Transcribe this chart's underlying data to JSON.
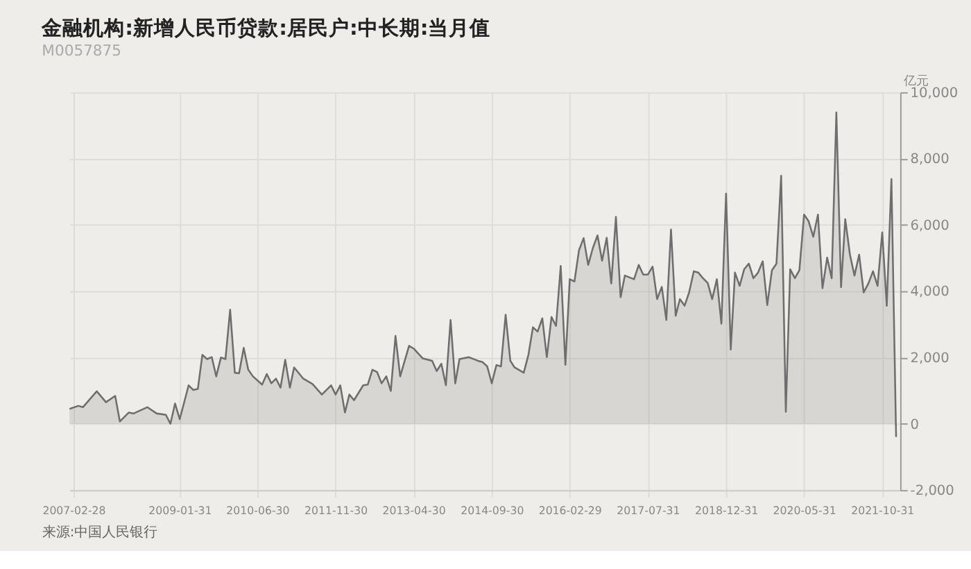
{
  "chart_data": {
    "type": "area",
    "title": "金融机构:新增人民币贷款:居民户:中长期:当月值",
    "subtitle": "M0057875",
    "ylabel": "亿元",
    "annotations": [
      "来源:中国人民银行"
    ],
    "x": [
      "2007-02",
      "2007-04",
      "2007-05",
      "2007-08",
      "2007-10",
      "2007-12",
      "2008-01",
      "2008-03",
      "2008-04",
      "2008-07",
      "2008-09",
      "2008-11",
      "2008-12",
      "2009-01",
      "2009-02",
      "2009-04",
      "2009-05",
      "2009-06",
      "2009-07",
      "2009-08",
      "2009-09",
      "2009-10",
      "2009-11",
      "2009-12",
      "2010-01",
      "2010-02",
      "2010-03",
      "2010-04",
      "2010-05",
      "2010-06",
      "2010-08",
      "2010-09",
      "2010-10",
      "2010-11",
      "2010-12",
      "2011-01",
      "2011-02",
      "2011-03",
      "2011-05",
      "2011-07",
      "2011-09",
      "2011-11",
      "2011-12",
      "2012-01",
      "2012-02",
      "2012-03",
      "2012-04",
      "2012-06",
      "2012-07",
      "2012-08",
      "2012-09",
      "2012-10",
      "2012-11",
      "2012-12",
      "2013-01",
      "2013-02",
      "2013-04",
      "2013-05",
      "2013-07",
      "2013-09",
      "2013-10",
      "2013-11",
      "2013-12",
      "2014-01",
      "2014-02",
      "2014-03",
      "2014-05",
      "2014-07",
      "2014-08",
      "2014-09",
      "2014-10",
      "2014-11",
      "2014-12",
      "2015-01",
      "2015-02",
      "2015-03",
      "2015-05",
      "2015-06",
      "2015-07",
      "2015-08",
      "2015-09",
      "2015-10",
      "2015-11",
      "2015-12",
      "2016-01",
      "2016-02",
      "2016-03",
      "2016-04",
      "2016-05",
      "2016-06",
      "2016-07",
      "2016-08",
      "2016-09",
      "2016-10",
      "2016-11",
      "2016-12",
      "2017-01",
      "2017-02",
      "2017-03",
      "2017-05",
      "2017-06",
      "2017-07",
      "2017-08",
      "2017-09",
      "2017-10",
      "2017-11",
      "2017-12",
      "2018-01",
      "2018-02",
      "2018-03",
      "2018-04",
      "2018-05",
      "2018-06",
      "2018-07",
      "2018-08",
      "2018-09",
      "2018-10",
      "2018-11",
      "2018-12",
      "2019-01",
      "2019-02",
      "2019-03",
      "2019-04",
      "2019-05",
      "2019-06",
      "2019-07",
      "2019-08",
      "2019-09",
      "2019-10",
      "2019-11",
      "2019-12",
      "2020-01",
      "2020-02",
      "2020-03",
      "2020-04",
      "2020-05",
      "2020-06",
      "2020-07",
      "2020-08",
      "2020-09",
      "2020-10",
      "2020-11",
      "2020-12",
      "2021-01",
      "2021-02",
      "2021-03",
      "2021-04",
      "2021-05",
      "2021-06",
      "2021-07",
      "2021-08",
      "2021-09",
      "2021-10",
      "2021-11",
      "2021-12",
      "2022-01",
      "2022-02"
    ],
    "series": [
      {
        "color": "#6e6e6e",
        "values": [
          450,
          540,
          500,
          980,
          650,
          840,
          70,
          340,
          310,
          500,
          310,
          270,
          0,
          610,
          140,
          1160,
          1020,
          1050,
          2080,
          1950,
          2010,
          1430,
          2000,
          1950,
          3440,
          1540,
          1520,
          2290,
          1630,
          1430,
          1180,
          1500,
          1220,
          1360,
          1090,
          1930,
          1090,
          1700,
          1360,
          1200,
          880,
          1160,
          880,
          1160,
          340,
          880,
          710,
          1160,
          1180,
          1630,
          1560,
          1220,
          1430,
          990,
          2650,
          1430,
          2350,
          2270,
          1970,
          1900,
          1590,
          1810,
          1160,
          3130,
          1220,
          1950,
          2010,
          1900,
          1860,
          1730,
          1220,
          1770,
          1730,
          3290,
          1900,
          1700,
          1540,
          2080,
          2910,
          2780,
          3180,
          2010,
          3220,
          2950,
          4760,
          1780,
          4360,
          4290,
          5230,
          5600,
          4790,
          5300,
          5680,
          4920,
          5610,
          4230,
          6240,
          3820,
          4470,
          4360,
          4790,
          4500,
          4500,
          4740,
          3760,
          4130,
          3130,
          5860,
          3260,
          3760,
          3560,
          3960,
          4600,
          4560,
          4390,
          4250,
          3760,
          4360,
          3020,
          6940,
          2240,
          4560,
          4160,
          4660,
          4830,
          4390,
          4560,
          4900,
          3580,
          4630,
          4830,
          7480,
          360,
          4660,
          4390,
          4630,
          6310,
          6110,
          5640,
          6310,
          4090,
          5010,
          4390,
          9390,
          4120,
          6170,
          5100,
          4470,
          5100,
          3960,
          4230,
          4600,
          4160,
          5770,
          3560,
          7380,
          -400
        ]
      }
    ],
    "xlim": [
      "2007-02-01",
      "2022-02-28"
    ],
    "xticks": [
      "2007-02-28",
      "2009-01-31",
      "2010-06-30",
      "2011-11-30",
      "2013-04-30",
      "2014-09-30",
      "2016-02-29",
      "2017-07-31",
      "2018-12-31",
      "2020-05-31",
      "2021-10-31"
    ],
    "ylim": [
      -2000,
      10000
    ],
    "yticks": [
      {
        "value": -2000,
        "label": "-2,000"
      },
      0,
      {
        "value": 2000,
        "label": "2,000"
      },
      {
        "value": 4000,
        "label": "4,000"
      },
      {
        "value": 6000,
        "label": "6,000"
      },
      {
        "value": 8000,
        "label": "8,000"
      },
      {
        "value": 10000,
        "label": "10,000"
      }
    ],
    "grid": true
  }
}
